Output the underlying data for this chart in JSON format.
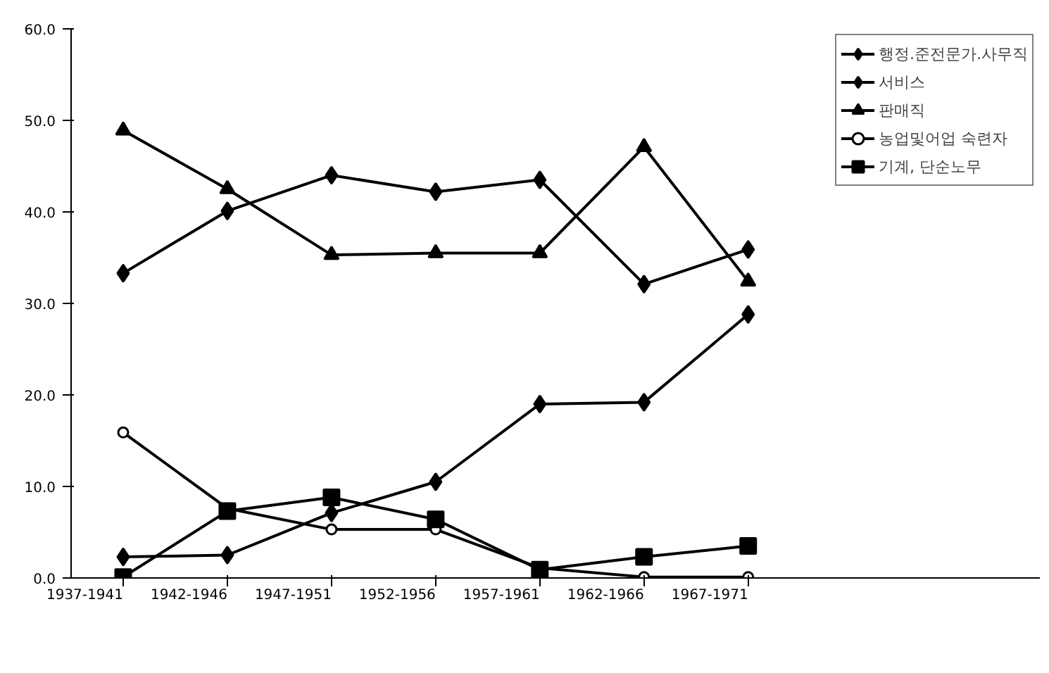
{
  "chart_data": {
    "type": "line",
    "categories": [
      "1937-1941",
      "1942-1946",
      "1947-1951",
      "1952-1956",
      "1957-1961",
      "1962-1966",
      "1967-1971"
    ],
    "series": [
      {
        "name": "행정.준전문가.사무직",
        "color": "#000000",
        "marker": "diamond",
        "values": [
          2.3,
          2.5,
          7.1,
          10.5,
          19.0,
          19.2,
          28.8
        ]
      },
      {
        "name": "서비스",
        "color": "#000000",
        "marker": "diamond",
        "values": [
          33.3,
          40.1,
          44.0,
          42.2,
          43.5,
          32.1,
          35.9
        ]
      },
      {
        "name": "판매직",
        "color": "#000000",
        "marker": "triangle",
        "values": [
          48.9,
          42.5,
          35.3,
          35.5,
          35.5,
          47.1,
          32.4
        ]
      },
      {
        "name": "농업및어업 숙련자",
        "color": "#000000",
        "marker": "circle",
        "values": [
          15.9,
          7.6,
          5.3,
          5.3,
          1.1,
          0.1,
          0.1
        ]
      },
      {
        "name": "기계, 단순노무",
        "color": "#000000",
        "marker": "square",
        "values": [
          0.1,
          7.3,
          8.8,
          6.4,
          0.9,
          2.3,
          3.5
        ]
      }
    ],
    "ylim": [
      0,
      60
    ],
    "yticks": [
      {
        "value": 0,
        "label": "0.0"
      },
      {
        "value": 10,
        "label": "10.0"
      },
      {
        "value": 20,
        "label": "20.0"
      },
      {
        "value": 30,
        "label": "30.0"
      },
      {
        "value": 40,
        "label": "40.0"
      },
      {
        "value": 50,
        "label": "50.0"
      },
      {
        "value": 60,
        "label": "60.0"
      }
    ],
    "grid": false,
    "legend": "top right",
    "line_style": "solid"
  }
}
